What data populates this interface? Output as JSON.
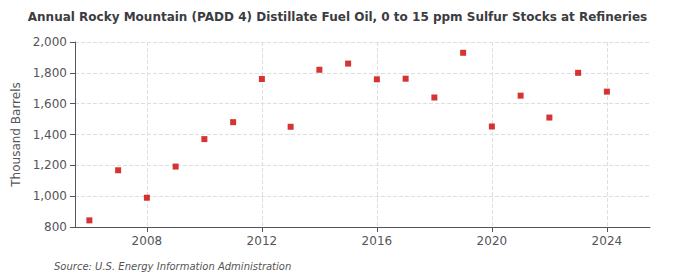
{
  "chart_data": {
    "type": "scatter",
    "title": "Annual Rocky Mountain (PADD 4) Distillate Fuel Oil, 0 to 15 ppm Sulfur Stocks at Refineries",
    "ylabel": "Thousand Barrels",
    "annotation": "Source: U.S. Energy Information Administration",
    "x": [
      2006,
      2007,
      2008,
      2009,
      2010,
      2011,
      2012,
      2013,
      2014,
      2015,
      2016,
      2017,
      2018,
      2019,
      2020,
      2021,
      2022,
      2023,
      2024
    ],
    "values": [
      843,
      1168,
      990,
      1192,
      1370,
      1480,
      1760,
      1450,
      1820,
      1860,
      1758,
      1762,
      1640,
      1930,
      1452,
      1652,
      1510,
      1800,
      1678
    ],
    "color": "#cc0000",
    "marker": "square",
    "xlim": [
      2005.5,
      2025.5
    ],
    "xticks": [
      2008,
      2012,
      2016,
      2020,
      2024
    ],
    "ylim": [
      800,
      2000
    ],
    "yticks": [
      800,
      {
        "value": 1000,
        "label": "1,000"
      },
      {
        "value": 1200,
        "label": "1,200"
      },
      {
        "value": 1400,
        "label": "1,400"
      },
      {
        "value": 1600,
        "label": "1,600"
      },
      {
        "value": 1800,
        "label": "1,800"
      },
      {
        "value": 2000,
        "label": "2,000"
      }
    ],
    "grid": true
  }
}
